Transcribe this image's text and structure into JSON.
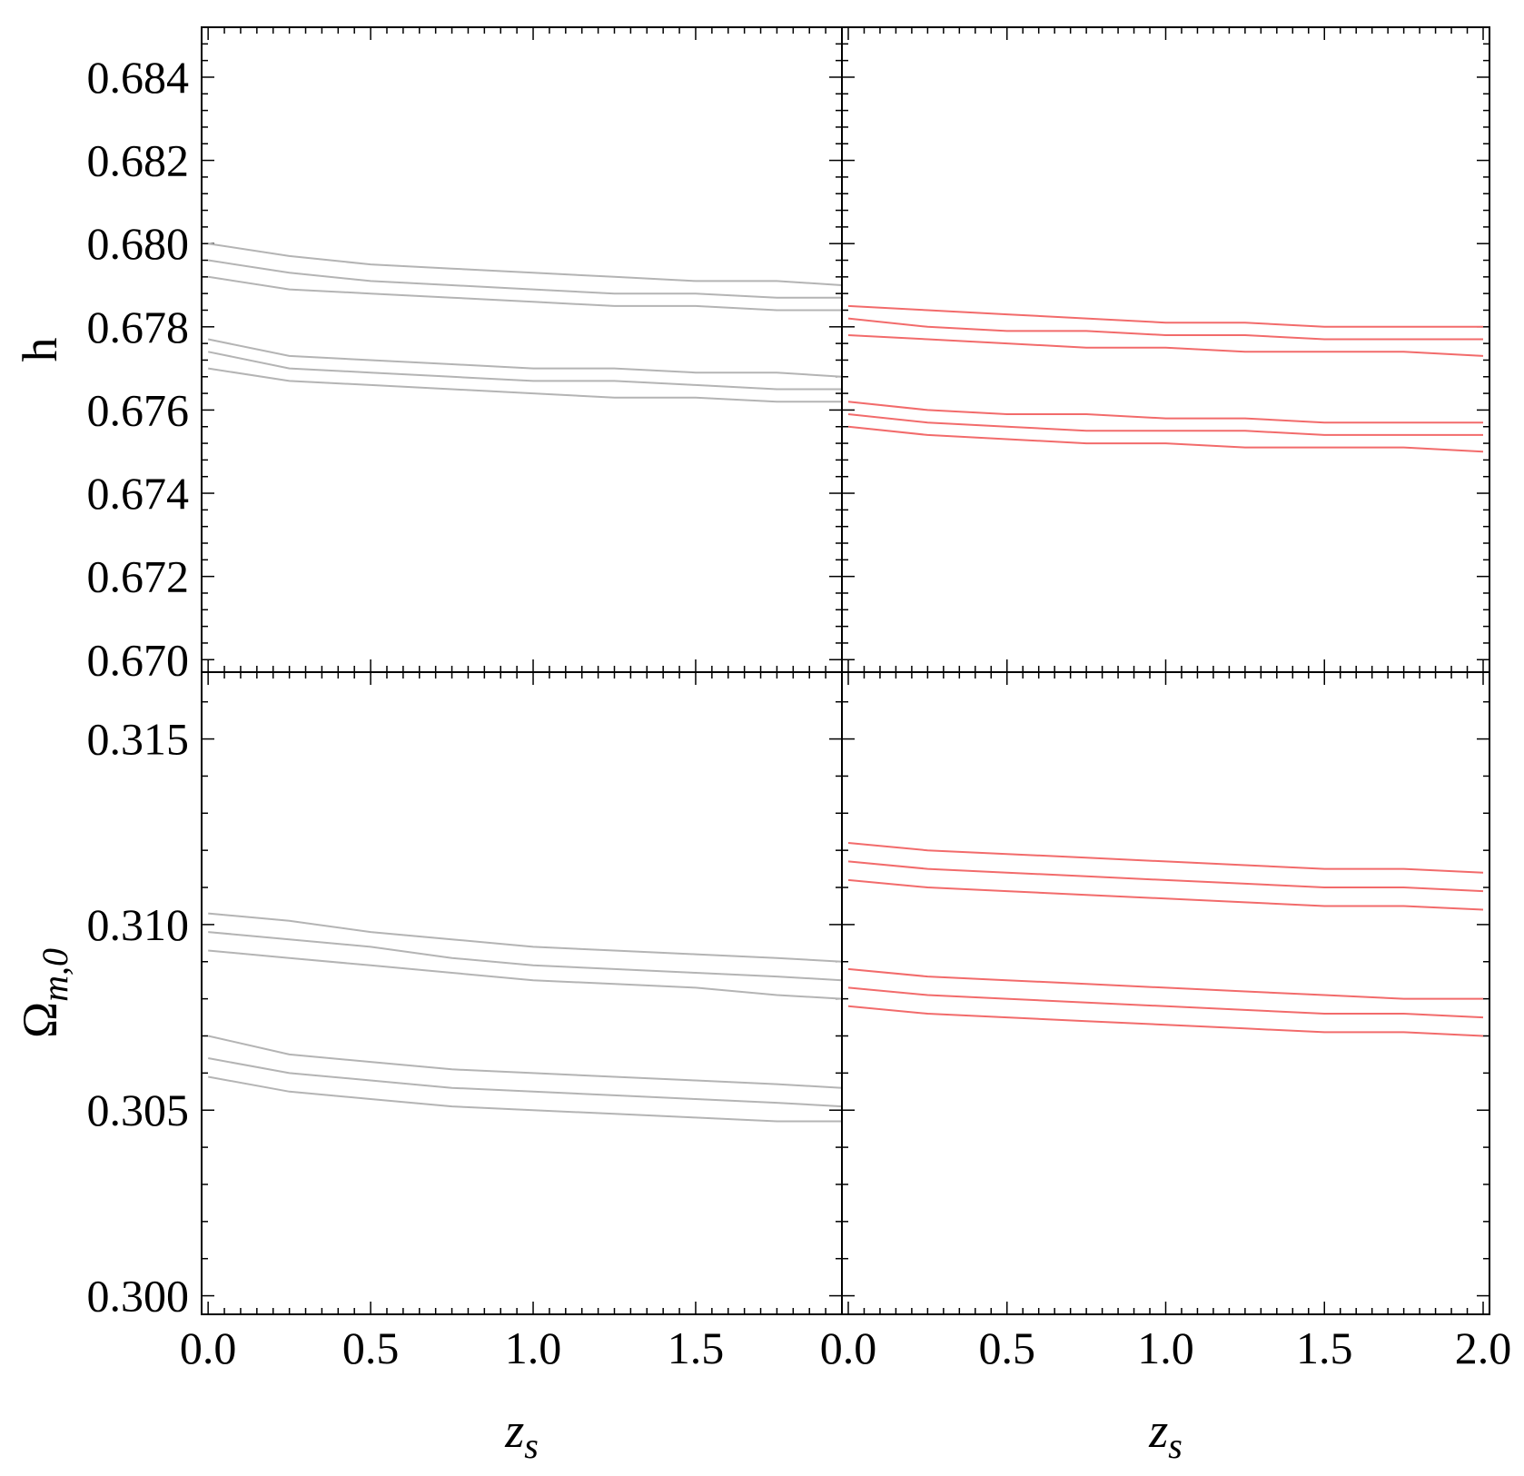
{
  "chart_data": [
    {
      "type": "line",
      "panel": "top-left",
      "ylabel": "h",
      "xlabel": "",
      "xlim": [
        -0.02,
        1.95
      ],
      "ylim": [
        0.6697,
        0.6852
      ],
      "yticks": [
        "0.670",
        "0.672",
        "0.674",
        "0.676",
        "0.678",
        "0.680",
        "0.682",
        "0.684"
      ],
      "xticks": [],
      "color": "#b4b4b4",
      "x": [
        0.0,
        0.25,
        0.5,
        0.75,
        1.0,
        1.25,
        1.5,
        1.75,
        1.95
      ],
      "series": [
        {
          "values": [
            0.68,
            0.6797,
            0.6795,
            0.6794,
            0.6793,
            0.6792,
            0.6791,
            0.6791,
            0.679
          ]
        },
        {
          "values": [
            0.6796,
            0.6793,
            0.6791,
            0.679,
            0.6789,
            0.6788,
            0.6788,
            0.6787,
            0.6787
          ]
        },
        {
          "values": [
            0.6792,
            0.6789,
            0.6788,
            0.6787,
            0.6786,
            0.6785,
            0.6785,
            0.6784,
            0.6784
          ]
        },
        {
          "values": [
            0.6777,
            0.6773,
            0.6772,
            0.6771,
            0.677,
            0.677,
            0.6769,
            0.6769,
            0.6768
          ]
        },
        {
          "values": [
            0.6774,
            0.677,
            0.6769,
            0.6768,
            0.6767,
            0.6767,
            0.6766,
            0.6765,
            0.6765
          ]
        },
        {
          "values": [
            0.677,
            0.6767,
            0.6766,
            0.6765,
            0.6764,
            0.6763,
            0.6763,
            0.6762,
            0.6762
          ]
        }
      ]
    },
    {
      "type": "line",
      "panel": "top-right",
      "ylabel": "",
      "xlabel": "",
      "xlim": [
        -0.02,
        2.02
      ],
      "ylim": [
        0.6697,
        0.6852
      ],
      "yticks": [],
      "xticks": [],
      "color": "#f26b6b",
      "x": [
        0.0,
        0.25,
        0.5,
        0.75,
        1.0,
        1.25,
        1.5,
        1.75,
        2.0
      ],
      "series": [
        {
          "values": [
            0.6785,
            0.6784,
            0.6783,
            0.6782,
            0.6781,
            0.6781,
            0.678,
            0.678,
            0.678
          ]
        },
        {
          "values": [
            0.6782,
            0.678,
            0.6779,
            0.6779,
            0.6778,
            0.6778,
            0.6777,
            0.6777,
            0.6777
          ]
        },
        {
          "values": [
            0.6778,
            0.6777,
            0.6776,
            0.6775,
            0.6775,
            0.6774,
            0.6774,
            0.6774,
            0.6773
          ]
        },
        {
          "values": [
            0.6762,
            0.676,
            0.6759,
            0.6759,
            0.6758,
            0.6758,
            0.6757,
            0.6757,
            0.6757
          ]
        },
        {
          "values": [
            0.6759,
            0.6757,
            0.6756,
            0.6755,
            0.6755,
            0.6755,
            0.6754,
            0.6754,
            0.6754
          ]
        },
        {
          "values": [
            0.6756,
            0.6754,
            0.6753,
            0.6752,
            0.6752,
            0.6751,
            0.6751,
            0.6751,
            0.675
          ]
        }
      ]
    },
    {
      "type": "line",
      "panel": "bottom-left",
      "ylabel": "Ω",
      "ylabel_sub": "m,0",
      "xlabel": "z",
      "xlabel_sub": "s",
      "xlim": [
        -0.02,
        1.95
      ],
      "ylim": [
        0.2995,
        0.3168
      ],
      "yticks": [
        "0.300",
        "0.305",
        "0.310",
        "0.315"
      ],
      "xticks": [
        "0.0",
        "0.5",
        "1.0",
        "1.5"
      ],
      "color": "#b4b4b4",
      "x": [
        0.0,
        0.25,
        0.5,
        0.75,
        1.0,
        1.25,
        1.5,
        1.75,
        1.95
      ],
      "series": [
        {
          "values": [
            0.3103,
            0.3101,
            0.3098,
            0.3096,
            0.3094,
            0.3093,
            0.3092,
            0.3091,
            0.309
          ]
        },
        {
          "values": [
            0.3098,
            0.3096,
            0.3094,
            0.3091,
            0.3089,
            0.3088,
            0.3087,
            0.3086,
            0.3085
          ]
        },
        {
          "values": [
            0.3093,
            0.3091,
            0.3089,
            0.3087,
            0.3085,
            0.3084,
            0.3083,
            0.3081,
            0.308
          ]
        },
        {
          "values": [
            0.307,
            0.3065,
            0.3063,
            0.3061,
            0.306,
            0.3059,
            0.3058,
            0.3057,
            0.3056
          ]
        },
        {
          "values": [
            0.3064,
            0.306,
            0.3058,
            0.3056,
            0.3055,
            0.3054,
            0.3053,
            0.3052,
            0.3051
          ]
        },
        {
          "values": [
            0.3059,
            0.3055,
            0.3053,
            0.3051,
            0.305,
            0.3049,
            0.3048,
            0.3047,
            0.3047
          ]
        }
      ]
    },
    {
      "type": "line",
      "panel": "bottom-right",
      "ylabel": "",
      "xlabel": "z",
      "xlabel_sub": "s",
      "xlim": [
        -0.02,
        2.02
      ],
      "ylim": [
        0.2995,
        0.3168
      ],
      "yticks": [],
      "xticks": [
        "0.0",
        "0.5",
        "1.0",
        "1.5",
        "2.0"
      ],
      "color": "#f26b6b",
      "x": [
        0.0,
        0.25,
        0.5,
        0.75,
        1.0,
        1.25,
        1.5,
        1.75,
        2.0
      ],
      "series": [
        {
          "values": [
            0.3122,
            0.312,
            0.3119,
            0.3118,
            0.3117,
            0.3116,
            0.3115,
            0.3115,
            0.3114
          ]
        },
        {
          "values": [
            0.3117,
            0.3115,
            0.3114,
            0.3113,
            0.3112,
            0.3111,
            0.311,
            0.311,
            0.3109
          ]
        },
        {
          "values": [
            0.3112,
            0.311,
            0.3109,
            0.3108,
            0.3107,
            0.3106,
            0.3105,
            0.3105,
            0.3104
          ]
        },
        {
          "values": [
            0.3088,
            0.3086,
            0.3085,
            0.3084,
            0.3083,
            0.3082,
            0.3081,
            0.308,
            0.308
          ]
        },
        {
          "values": [
            0.3083,
            0.3081,
            0.308,
            0.3079,
            0.3078,
            0.3077,
            0.3076,
            0.3076,
            0.3075
          ]
        },
        {
          "values": [
            0.3078,
            0.3076,
            0.3075,
            0.3074,
            0.3073,
            0.3072,
            0.3071,
            0.3071,
            0.307
          ]
        }
      ]
    }
  ]
}
